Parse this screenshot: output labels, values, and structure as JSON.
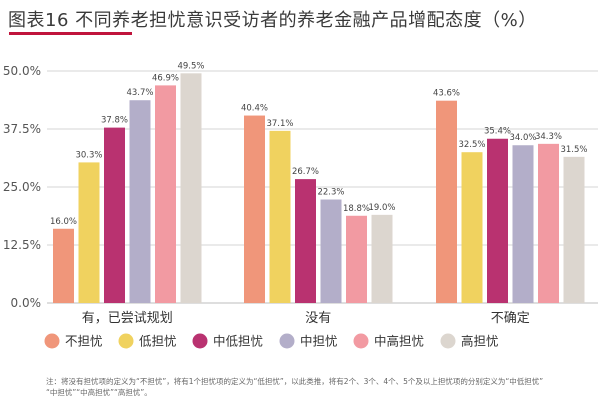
{
  "title": "图表16 不同养老担忧意识受访者的养老金融产品增配态度（%）",
  "footnote": {
    "line1": "注：将没有担忧项的定义为“不担忧”，将有1个担忧项的定义为“低担忧”，以此类推，将有2个、3个、4个、5个及以上担忧项的分别定义为“中低担忧”",
    "line2": "“中担忧”“中高担忧”“高担忧”。"
  },
  "colors": [
    "#f0967a",
    "#f0d25f",
    "#b93270",
    "#b3aec9",
    "#f29aa2",
    "#dcd6cf"
  ],
  "chart_data": {
    "type": "bar",
    "categories": [
      "有，已尝试规划",
      "没有",
      "不确定"
    ],
    "series": [
      {
        "name": "不担忧",
        "values": [
          16.0,
          40.4,
          43.6
        ]
      },
      {
        "name": "低担忧",
        "values": [
          30.3,
          37.1,
          32.5
        ]
      },
      {
        "name": "中低担忧",
        "values": [
          37.8,
          26.7,
          35.4
        ]
      },
      {
        "name": "中担忧",
        "values": [
          43.7,
          22.3,
          34.0
        ]
      },
      {
        "name": "中高担忧",
        "values": [
          46.9,
          18.8,
          34.3
        ]
      },
      {
        "name": "高担忧",
        "values": [
          49.5,
          19.0,
          31.5
        ]
      }
    ],
    "value_labels": [
      [
        "16.0%",
        "40.4%",
        "43.6%"
      ],
      [
        "30.3%",
        "37.1%",
        "32.5%"
      ],
      [
        "37.8%",
        "26.7%",
        "35.4%"
      ],
      [
        "43.7%",
        "22.3%",
        "34.0%"
      ],
      [
        "46.9%",
        "18.8%",
        "34.3%"
      ],
      [
        "49.5%",
        "19.0%",
        "31.5%"
      ]
    ],
    "yticks": [
      0,
      12.5,
      25,
      37.5,
      50
    ],
    "ytick_labels": [
      "0.0%",
      "12.5%",
      "25.0%",
      "37.5%",
      "50.0%"
    ],
    "ylim": [
      0,
      50
    ],
    "grid": true,
    "legend_position": "bottom"
  }
}
